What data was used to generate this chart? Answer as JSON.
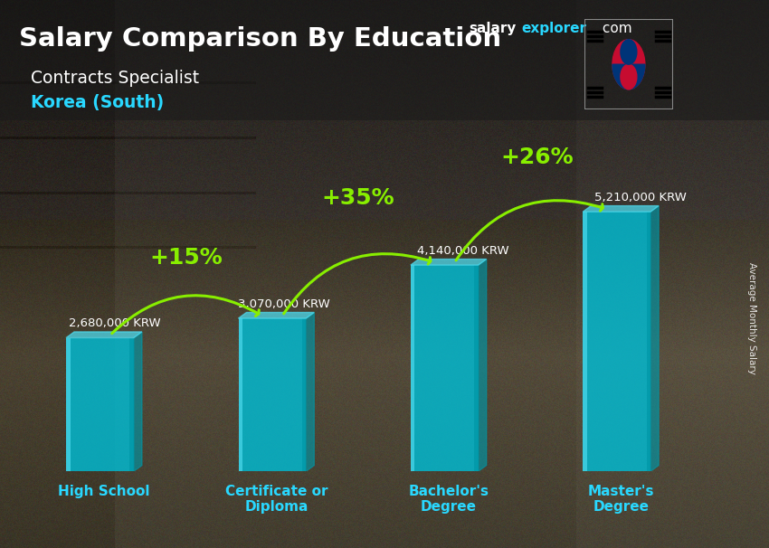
{
  "title_main": "Salary Comparison By Education",
  "title_sub": "Contracts Specialist",
  "title_country": "Korea (South)",
  "ylabel_rotated": "Average Monthly Salary",
  "site_salary": "salary",
  "site_explorer": "explorer",
  "site_com": ".com",
  "categories": [
    "High School",
    "Certificate or\nDiploma",
    "Bachelor's\nDegree",
    "Master's\nDegree"
  ],
  "values": [
    2680000,
    3070000,
    4140000,
    5210000
  ],
  "value_labels": [
    "2,680,000 KRW",
    "3,070,000 KRW",
    "4,140,000 KRW",
    "5,210,000 KRW"
  ],
  "pct_labels": [
    "+15%",
    "+35%",
    "+26%"
  ],
  "bar_color_face": "#00bcd4",
  "bar_color_light": "#4dd9ec",
  "bar_color_dark": "#0097a7",
  "bar_alpha": 0.82,
  "text_white": "#ffffff",
  "text_cyan": "#29d8ff",
  "text_green": "#88ee00",
  "bg_warehouse_colors": [
    "#5a4535",
    "#6b5545",
    "#4a3828",
    "#3d2e1e",
    "#7a6550"
  ],
  "title_bg_color": "#1a1a1a",
  "title_bg_alpha": 0.55,
  "ylim_max": 6600000,
  "bar_width": 0.55,
  "bar_positions": [
    0.5,
    1.9,
    3.3,
    4.7
  ],
  "xlim": [
    0.0,
    5.5
  ],
  "figsize": [
    8.5,
    6.06
  ],
  "dpi": 100,
  "flag_colors": {
    "white": "#ffffff",
    "red": "#C60C30",
    "blue": "#003478",
    "black": "#000000"
  }
}
